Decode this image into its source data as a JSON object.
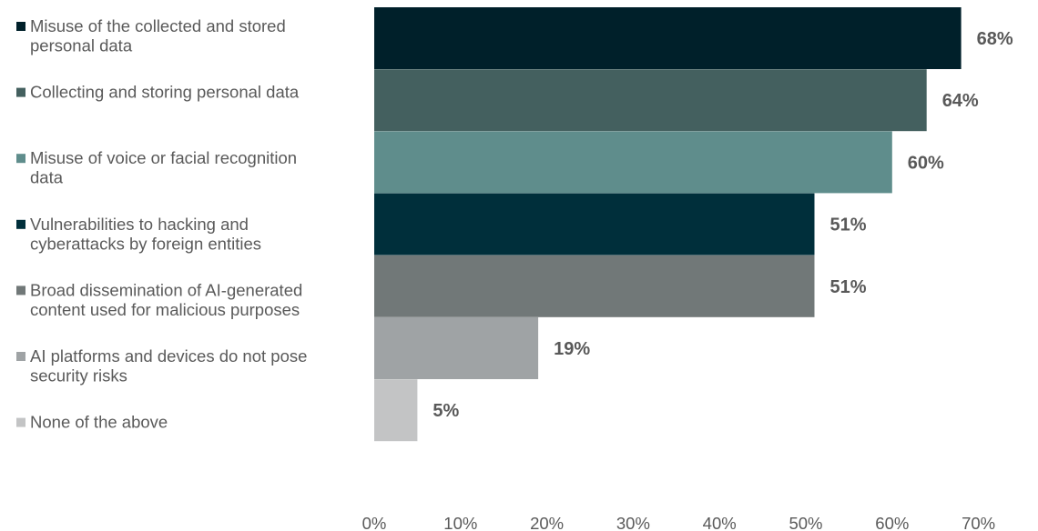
{
  "chart_data": {
    "type": "bar",
    "orientation": "horizontal",
    "categories": [
      [
        "Misuse of the collected and stored",
        "personal data"
      ],
      [
        "Collecting and storing personal data"
      ],
      [
        "Misuse of voice or facial recognition",
        "data"
      ],
      [
        "Vulnerabilities to hacking and",
        "cyberattacks by foreign entities"
      ],
      [
        "Broad dissemination of AI-generated",
        "content used for malicious purposes"
      ],
      [
        "AI platforms and devices do not pose",
        "security risks"
      ],
      [
        "None of the above"
      ]
    ],
    "values": [
      68,
      64,
      60,
      51,
      51,
      19,
      5
    ],
    "value_labels": [
      "68%",
      "64%",
      "60%",
      "51%",
      "51%",
      "19%",
      "5%"
    ],
    "colors": [
      "#00202a",
      "#44605f",
      "#5f8d8c",
      "#002f3b",
      "#717878",
      "#9fa3a5",
      "#c3c4c5"
    ],
    "xlim": [
      0,
      70
    ],
    "xticks": [
      0,
      10,
      20,
      30,
      40,
      50,
      60,
      70
    ],
    "xtick_labels": [
      "0%",
      "10%",
      "20%",
      "30%",
      "40%",
      "50%",
      "60%",
      "70%"
    ],
    "legend_placement": "left",
    "grid": false
  }
}
